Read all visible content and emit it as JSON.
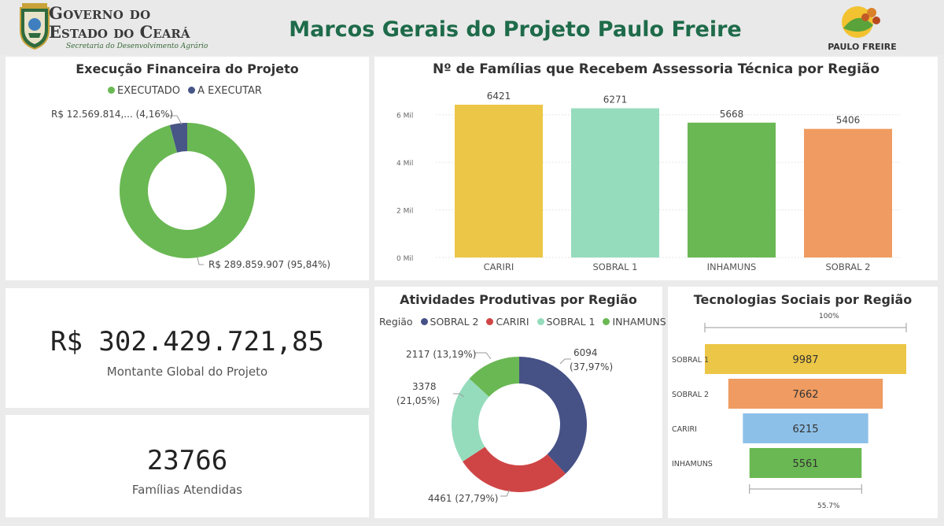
{
  "header": {
    "gov_line1": "Governo do",
    "gov_line2": "Estado do Ceará",
    "gov_line3": "Secretaria do Desenvolvimento Agrário",
    "title": "Marcos Gerais do Projeto Paulo Freire",
    "logo_text": "PAULO FREIRE"
  },
  "colors": {
    "executado": "#6ab853",
    "a_executar": "#475687",
    "yellow": "#ecc646",
    "mint": "#95dcbd",
    "green": "#6ab853",
    "orange": "#ef9b61",
    "navy": "#465186",
    "red": "#cf4545",
    "lightblue": "#8dc0e8"
  },
  "financeiro": {
    "title": "Execução Financeira do Projeto",
    "legend": [
      "EXECUTADO",
      "A EXECUTAR"
    ],
    "label_small": "R$ 12.569.814,... (4,16%)",
    "label_large": "R$ 289.859.907 (95,84%)"
  },
  "kpi_montante": {
    "value": "R$ 302.429.721,85",
    "label": "Montante Global do Projeto"
  },
  "kpi_familias": {
    "value": "23766",
    "label": "Famílias Atendidas"
  },
  "familias_regiao": {
    "title": "Nº de Famílias que Recebem Assessoria Técnica por Região",
    "y_ticks": [
      "0 Mil",
      "2 Mil",
      "4 Mil",
      "6 Mil"
    ]
  },
  "atividades": {
    "title": "Atividades Produtivas por Região",
    "legend_title": "Região",
    "legend": [
      "SOBRAL 2",
      "CARIRI",
      "SOBRAL 1",
      "INHAMUNS"
    ],
    "labels": {
      "sobral2_value": "6094",
      "sobral2_pct": "(37,97%)",
      "cariri": "4461 (27,79%)",
      "sobral1_value": "3378",
      "sobral1_pct": "(21,05%)",
      "inhamuns": "2117 (13,19%)"
    }
  },
  "tecnologias": {
    "title": "Tecnologias Sociais por Região",
    "top_pct": "100%",
    "bottom_pct": "55.7%"
  },
  "chart_data": [
    {
      "type": "pie",
      "title": "Execução Financeira do Projeto",
      "categories": [
        "EXECUTADO",
        "A EXECUTAR"
      ],
      "values": [
        289859907,
        12569814
      ],
      "percent": [
        95.84,
        4.16
      ],
      "donut": true
    },
    {
      "type": "bar",
      "title": "Nº de Famílias que Recebem Assessoria Técnica por Região",
      "categories": [
        "CARIRI",
        "SOBRAL 1",
        "INHAMUNS",
        "SOBRAL 2"
      ],
      "values": [
        6421,
        6271,
        5668,
        5406
      ],
      "ylim": [
        0,
        6421
      ],
      "y_ticks": [
        0,
        2000,
        4000,
        6000
      ],
      "grid": true
    },
    {
      "type": "pie",
      "title": "Atividades Produtivas por Região",
      "categories": [
        "SOBRAL 2",
        "CARIRI",
        "SOBRAL 1",
        "INHAMUNS"
      ],
      "values": [
        6094,
        4461,
        3378,
        2117
      ],
      "percent": [
        37.97,
        27.79,
        21.05,
        13.19
      ],
      "donut": true,
      "legend_position": "top"
    },
    {
      "type": "bar",
      "subtype": "funnel",
      "title": "Tecnologias Sociais por Região",
      "categories": [
        "SOBRAL 1",
        "SOBRAL 2",
        "CARIRI",
        "INHAMUNS"
      ],
      "values": [
        9987,
        7662,
        6215,
        5561
      ]
    }
  ]
}
